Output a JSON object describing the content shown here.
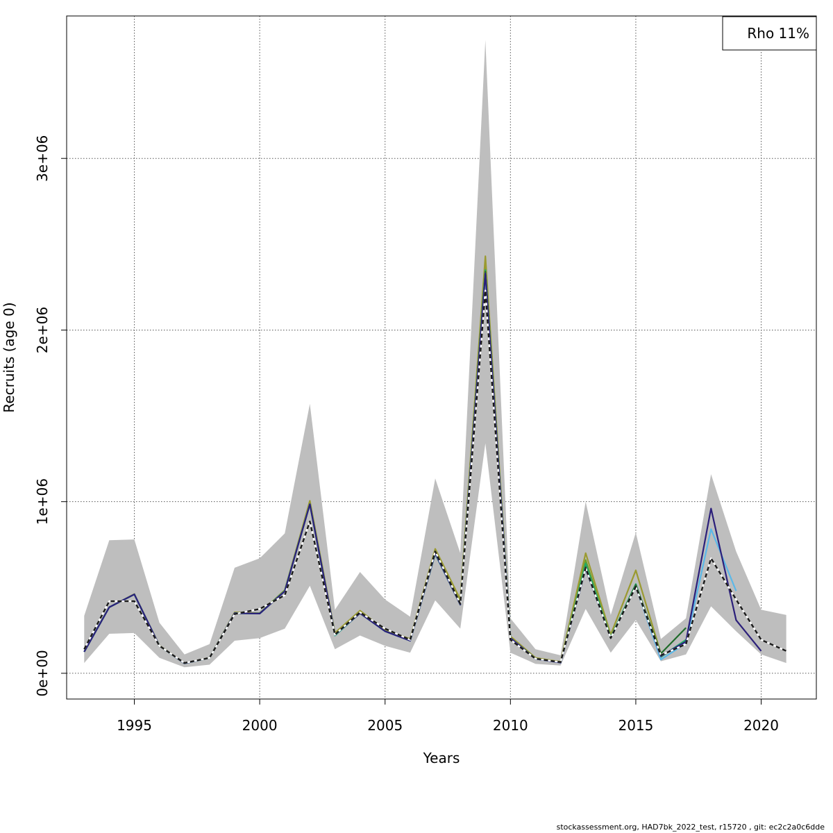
{
  "chart_data": {
    "type": "line",
    "xlabel": "Years",
    "ylabel": "Recruits (age 0)",
    "xlim": [
      1992.3,
      2022.2
    ],
    "ylim": [
      -150000,
      3830000
    ],
    "x_ticks": [
      1995,
      2000,
      2005,
      2010,
      2015,
      2020
    ],
    "x_tick_labels": [
      "1995",
      "2000",
      "2005",
      "2010",
      "2015",
      "2020"
    ],
    "y_ticks": [
      0,
      1000000,
      2000000,
      3000000
    ],
    "y_tick_labels": [
      "0e+00",
      "1e+06",
      "2e+06",
      "3e+06"
    ],
    "grid": true,
    "legend": {
      "position": "top-right",
      "text": "Rho 11%"
    },
    "colors": {
      "band": "#bebebe",
      "terminal": "#1a1a1a",
      "peel1": "#2b1f7a",
      "peel2": "#5bb8e8",
      "peel3": "#1f6b2a",
      "peel4": "#22a86a",
      "peel5": "#9a9a30",
      "peel6": "#2e9e8a",
      "peel7": "#6aa02a"
    },
    "band": {
      "x": [
        1993,
        1994,
        1995,
        1996,
        1997,
        1998,
        1999,
        2000,
        2001,
        2002,
        2003,
        2004,
        2005,
        2006,
        2007,
        2008,
        2009,
        2010,
        2011,
        2012,
        2013,
        2014,
        2015,
        2016,
        2017,
        2018,
        2019,
        2020,
        2021
      ],
      "lower": [
        60000,
        230000,
        235000,
        90000,
        35000,
        50000,
        190000,
        205000,
        260000,
        510000,
        140000,
        220000,
        160000,
        120000,
        425000,
        260000,
        1340000,
        120000,
        55000,
        45000,
        375000,
        120000,
        310000,
        70000,
        110000,
        390000,
        245000,
        110000,
        60000
      ],
      "upper": [
        335000,
        775000,
        780000,
        295000,
        110000,
        170000,
        615000,
        670000,
        815000,
        1570000,
        370000,
        590000,
        430000,
        330000,
        1135000,
        700000,
        3690000,
        320000,
        140000,
        105000,
        1000000,
        340000,
        820000,
        200000,
        320000,
        1160000,
        710000,
        370000,
        340000
      ]
    },
    "series": [
      {
        "color_key": "peel7",
        "x": [
          1993,
          1994,
          1995,
          1996,
          1997,
          1998,
          1999,
          2000,
          2001,
          2002,
          2003,
          2004,
          2005,
          2006,
          2007,
          2008,
          2009,
          2010,
          2011,
          2012,
          2013,
          2014
        ],
        "values": [
          125000,
          385000,
          460000,
          160000,
          58000,
          90000,
          350000,
          350000,
          485000,
          1000000,
          225000,
          360000,
          250000,
          195000,
          710000,
          420000,
          2380000,
          210000,
          87000,
          65000,
          660000,
          210000
        ]
      },
      {
        "color_key": "peel6",
        "x": [
          1993,
          1994,
          1995,
          1996,
          1997,
          1998,
          1999,
          2000,
          2001,
          2002,
          2003,
          2004,
          2005,
          2006,
          2007,
          2008,
          2009,
          2010,
          2011,
          2012,
          2013,
          2014,
          2015
        ],
        "values": [
          125000,
          385000,
          460000,
          160000,
          58000,
          90000,
          350000,
          350000,
          480000,
          990000,
          220000,
          350000,
          245000,
          190000,
          695000,
          400000,
          2330000,
          205000,
          84000,
          63000,
          610000,
          205000,
          505000
        ]
      },
      {
        "color_key": "peel5",
        "x": [
          1993,
          1994,
          1995,
          1996,
          1997,
          1998,
          1999,
          2000,
          2001,
          2002,
          2003,
          2004,
          2005,
          2006,
          2007,
          2008,
          2009,
          2010,
          2011,
          2012,
          2013,
          2014,
          2015,
          2016
        ],
        "values": [
          125000,
          385000,
          462000,
          162000,
          59000,
          91000,
          355000,
          350000,
          480000,
          1005000,
          235000,
          365000,
          252000,
          200000,
          725000,
          430000,
          2430000,
          215000,
          90000,
          67000,
          700000,
          225000,
          600000,
          115000
        ]
      },
      {
        "color_key": "peel4",
        "x": [
          1993,
          1994,
          1995,
          1996,
          1997,
          1998,
          1999,
          2000,
          2001,
          2002,
          2003,
          2004,
          2005,
          2006,
          2007,
          2008,
          2009,
          2010,
          2011,
          2012,
          2013,
          2014,
          2015,
          2016,
          2017
        ],
        "values": [
          125000,
          385000,
          460000,
          160000,
          58000,
          90000,
          350000,
          348000,
          478000,
          985000,
          225000,
          350000,
          245000,
          190000,
          700000,
          400000,
          2350000,
          205000,
          85000,
          63000,
          640000,
          210000,
          520000,
          95000,
          195000
        ]
      },
      {
        "color_key": "peel3",
        "x": [
          1993,
          1994,
          1995,
          1996,
          1997,
          1998,
          1999,
          2000,
          2001,
          2002,
          2003,
          2004,
          2005,
          2006,
          2007,
          2008,
          2009,
          2010,
          2011,
          2012,
          2013,
          2014,
          2015,
          2016,
          2017
        ],
        "values": [
          125000,
          385000,
          460000,
          160000,
          58000,
          90000,
          350000,
          348000,
          478000,
          985000,
          225000,
          350000,
          245000,
          190000,
          700000,
          400000,
          2340000,
          205000,
          85000,
          63000,
          620000,
          205000,
          515000,
          115000,
          265000
        ]
      },
      {
        "color_key": "peel2",
        "x": [
          1993,
          1994,
          1995,
          1996,
          1997,
          1998,
          1999,
          2000,
          2001,
          2002,
          2003,
          2004,
          2005,
          2006,
          2007,
          2008,
          2009,
          2010,
          2011,
          2012,
          2013,
          2014,
          2015,
          2016,
          2017,
          2018,
          2019
        ],
        "values": [
          125000,
          385000,
          460000,
          160000,
          58000,
          90000,
          350000,
          348000,
          478000,
          985000,
          225000,
          350000,
          245000,
          190000,
          700000,
          400000,
          2330000,
          205000,
          84000,
          62000,
          610000,
          205000,
          505000,
          80000,
          175000,
          840000,
          480000
        ]
      },
      {
        "color_key": "peel1",
        "x": [
          1993,
          1994,
          1995,
          1996,
          1997,
          1998,
          1999,
          2000,
          2001,
          2002,
          2003,
          2004,
          2005,
          2006,
          2007,
          2008,
          2009,
          2010,
          2011,
          2012,
          2013,
          2014,
          2015,
          2016,
          2017,
          2018,
          2019,
          2020
        ],
        "values": [
          125000,
          385000,
          460000,
          160000,
          58000,
          90000,
          350000,
          348000,
          478000,
          985000,
          225000,
          350000,
          245000,
          190000,
          700000,
          400000,
          2330000,
          205000,
          84000,
          62000,
          610000,
          205000,
          505000,
          100000,
          185000,
          960000,
          310000,
          130000
        ]
      },
      {
        "color_key": "terminal",
        "dashed": true,
        "x": [
          1993,
          1994,
          1995,
          1996,
          1997,
          1998,
          1999,
          2000,
          2001,
          2002,
          2003,
          2004,
          2005,
          2006,
          2007,
          2008,
          2009,
          2010,
          2011,
          2012,
          2013,
          2014,
          2015,
          2016,
          2017,
          2018,
          2019,
          2020,
          2021
        ],
        "values": [
          140000,
          420000,
          420000,
          160000,
          60000,
          90000,
          345000,
          375000,
          455000,
          885000,
          225000,
          355000,
          260000,
          195000,
          710000,
          405000,
          2230000,
          195000,
          85000,
          65000,
          615000,
          205000,
          505000,
          105000,
          170000,
          670000,
          430000,
          195000,
          130000
        ]
      }
    ]
  },
  "footer": "stockassessment.org, HAD7bk_2022_test, r15720 , git: ec2c2a0c6dde"
}
